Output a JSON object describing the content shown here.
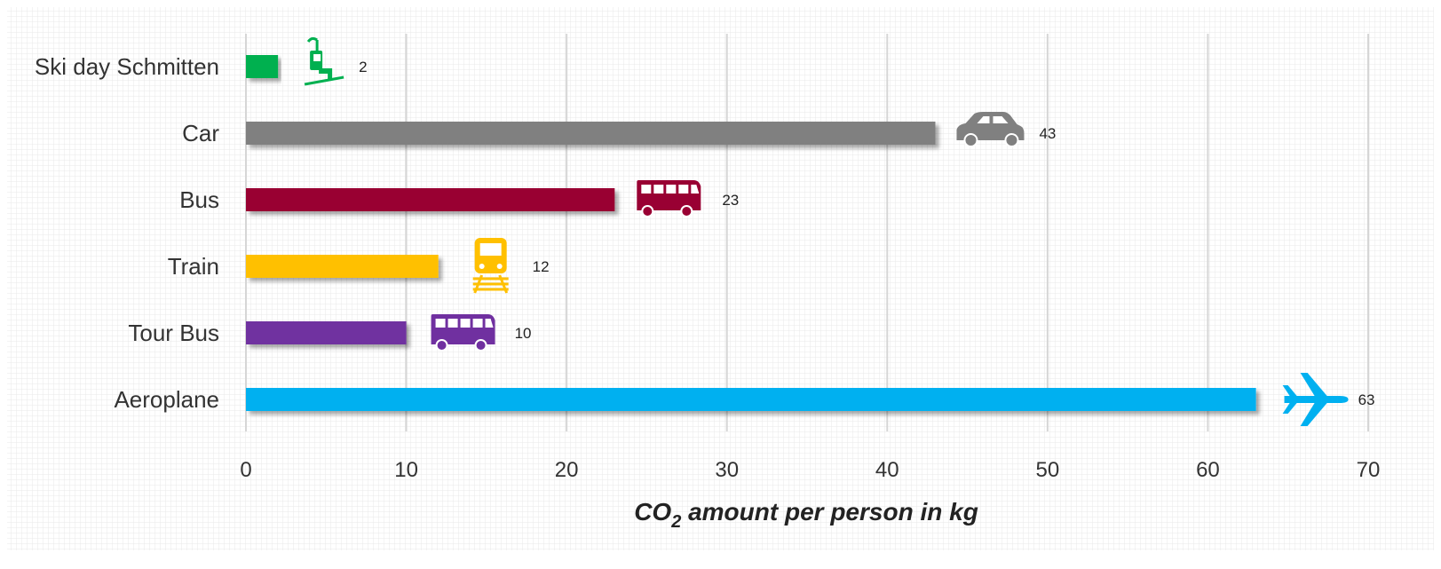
{
  "chart_data": {
    "type": "bar",
    "orientation": "horizontal",
    "categories": [
      "Ski day Schmitten",
      "Car",
      "Bus",
      "Train",
      "Tour Bus",
      "Aeroplane"
    ],
    "values": [
      2,
      43,
      23,
      12,
      10,
      63
    ],
    "value_labels": [
      "2",
      "43",
      "23",
      "12",
      "10",
      "63"
    ],
    "bar_colors": [
      "#00b050",
      "#808080",
      "#990033",
      "#ffc000",
      "#7030a0",
      "#00b0f0"
    ],
    "icons": [
      "chairlift-icon",
      "car-icon",
      "bus-icon",
      "train-icon",
      "tour-bus-icon",
      "aeroplane-icon"
    ],
    "xlabel_main": "CO",
    "xlabel_sub": "2",
    "xlabel_rest": " amount per person in kg",
    "xlim": [
      0,
      70
    ],
    "xticks": [
      0,
      10,
      20,
      30,
      40,
      50,
      60,
      70
    ],
    "grid": true,
    "legend": "none"
  }
}
